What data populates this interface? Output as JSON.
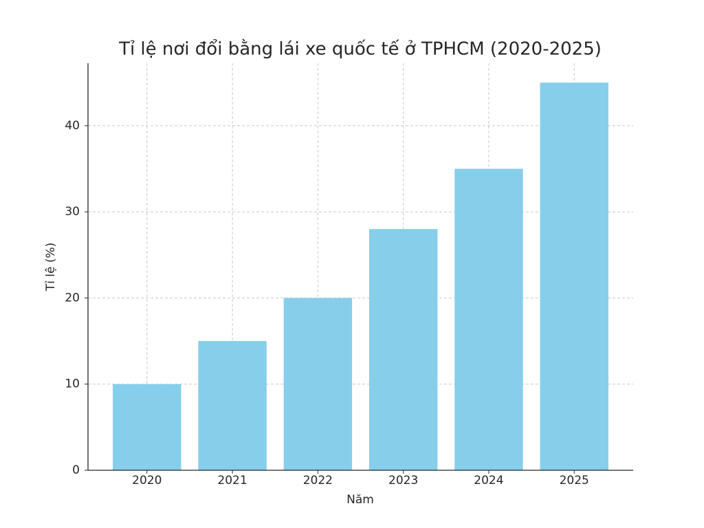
{
  "chart_data": {
    "type": "bar",
    "title": "Tỉ lệ nơi đổi bằng lái xe quốc tế ở TPHCM (2020-2025)",
    "x_label": "Năm",
    "y_label": "Tỉ lệ (%)",
    "categories": [
      "2020",
      "2021",
      "2022",
      "2023",
      "2024",
      "2025"
    ],
    "values": [
      10,
      15,
      20,
      28,
      35,
      45
    ],
    "color": "#87ceeb",
    "ylim": [
      0,
      47.25
    ],
    "yticks": [
      0,
      10,
      20,
      30,
      40
    ],
    "grid": true
  }
}
